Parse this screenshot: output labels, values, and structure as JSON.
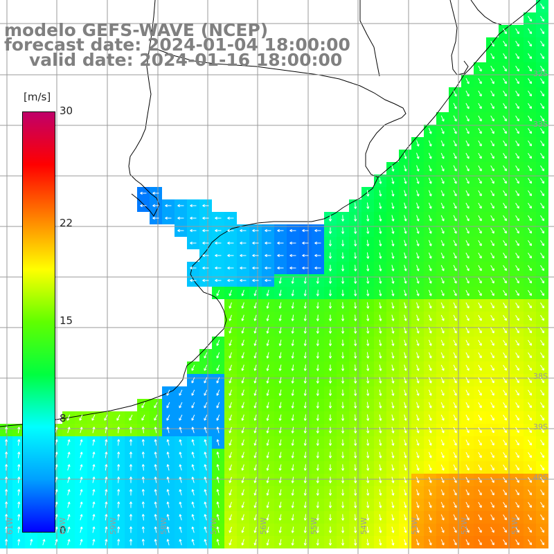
{
  "titles": {
    "model": "modelo GEFS-WAVE (NCEP)",
    "forecast": "forecast date: 2024-01-04 18:00:00",
    "valid": "valid date: 2024-01-16 18:00:00"
  },
  "colorbar": {
    "unit": "[m/s]",
    "ticks": [
      {
        "label": "30",
        "value": 30
      },
      {
        "label": "22",
        "value": 22
      },
      {
        "label": "15",
        "value": 15
      },
      {
        "label": "8",
        "value": 8
      },
      {
        "label": "0",
        "value": 0
      }
    ],
    "range": [
      0,
      30
    ],
    "colors": [
      "#0000ff",
      "#00a0ff",
      "#00ffff",
      "#00ff40",
      "#60ff00",
      "#ffff00",
      "#ff8000",
      "#ff0000",
      "#c0006a"
    ]
  },
  "grid": {
    "lat_labels": [
      "32S",
      "33S",
      "38S",
      "39S",
      "40S"
    ],
    "lon_labels": [
      "61W",
      "60W",
      "59W",
      "58W",
      "57W",
      "56W",
      "55W",
      "54W",
      "53W",
      "52W",
      "51W"
    ]
  },
  "colors": {
    "land": "#ffffff",
    "coastline": "#000000",
    "grid": "#9a9a9a",
    "title_text": "#808080",
    "arrows": "#ffffff"
  }
}
